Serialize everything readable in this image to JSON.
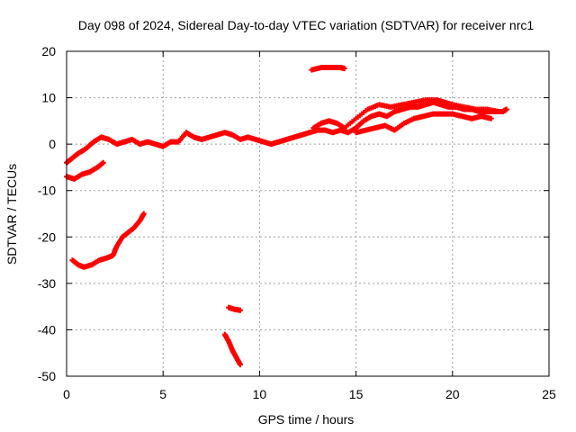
{
  "chart_data": {
    "type": "scatter",
    "title": "Day 098 of 2024, Sidereal Day-to-day VTEC variation (SDTVAR) for receiver nrc1",
    "xlabel": "GPS time / hours",
    "ylabel": "SDTVAR / TECUs",
    "xlim": [
      0,
      25
    ],
    "ylim": [
      -50,
      20
    ],
    "xticks": [
      0,
      5,
      10,
      15,
      20,
      25
    ],
    "yticks": [
      -50,
      -40,
      -30,
      -20,
      -10,
      0,
      10,
      20
    ],
    "xtick_labels": [
      "0",
      "5",
      "10",
      "15",
      "20",
      "25"
    ],
    "ytick_labels": [
      "-50",
      "-40",
      "-30",
      "-20",
      "-10",
      "0",
      "10",
      "20"
    ],
    "grid": true,
    "series_color": "#ff0000",
    "series": [
      {
        "name": "main-band",
        "points": [
          [
            0.0,
            -4.0
          ],
          [
            0.3,
            -3.0
          ],
          [
            0.6,
            -2.0
          ],
          [
            1.0,
            -1.0
          ],
          [
            1.4,
            0.5
          ],
          [
            1.8,
            1.5
          ],
          [
            2.2,
            1.0
          ],
          [
            2.6,
            0.0
          ],
          [
            3.0,
            0.5
          ],
          [
            3.4,
            1.0
          ],
          [
            3.8,
            0.0
          ],
          [
            4.2,
            0.5
          ],
          [
            4.6,
            0.0
          ],
          [
            5.0,
            -0.5
          ],
          [
            5.4,
            0.5
          ],
          [
            5.8,
            0.5
          ],
          [
            6.2,
            2.5
          ],
          [
            6.6,
            1.5
          ],
          [
            7.0,
            1.0
          ],
          [
            7.4,
            1.5
          ],
          [
            7.8,
            2.0
          ],
          [
            8.2,
            2.5
          ],
          [
            8.6,
            2.0
          ],
          [
            9.0,
            1.0
          ],
          [
            9.4,
            1.5
          ],
          [
            9.8,
            1.0
          ],
          [
            10.2,
            0.5
          ],
          [
            10.6,
            0.0
          ],
          [
            11.0,
            0.5
          ],
          [
            11.4,
            1.0
          ],
          [
            11.8,
            1.5
          ],
          [
            12.2,
            2.0
          ],
          [
            12.6,
            2.5
          ],
          [
            13.0,
            3.0
          ],
          [
            13.4,
            3.0
          ],
          [
            13.8,
            2.5
          ],
          [
            14.2,
            3.0
          ],
          [
            14.6,
            2.5
          ],
          [
            15.0,
            3.5
          ],
          [
            15.4,
            5.0
          ],
          [
            15.8,
            6.0
          ],
          [
            16.2,
            6.5
          ],
          [
            16.6,
            6.0
          ],
          [
            17.0,
            7.0
          ],
          [
            17.4,
            7.5
          ],
          [
            17.8,
            8.0
          ],
          [
            18.2,
            8.0
          ],
          [
            18.6,
            8.5
          ],
          [
            19.0,
            9.0
          ],
          [
            19.4,
            8.5
          ],
          [
            19.8,
            8.0
          ],
          [
            20.2,
            8.0
          ],
          [
            20.6,
            7.5
          ],
          [
            21.0,
            7.5
          ],
          [
            21.4,
            7.0
          ],
          [
            21.8,
            7.0
          ],
          [
            22.2,
            7.0
          ],
          [
            22.6,
            7.0
          ],
          [
            22.8,
            7.5
          ]
        ]
      },
      {
        "name": "upper-band",
        "points": [
          [
            12.8,
            3.5
          ],
          [
            13.2,
            4.5
          ],
          [
            13.6,
            5.0
          ],
          [
            14.0,
            4.5
          ],
          [
            14.4,
            3.5
          ],
          [
            15.0,
            5.5
          ],
          [
            15.6,
            7.5
          ],
          [
            16.2,
            8.5
          ],
          [
            16.8,
            8.0
          ],
          [
            17.4,
            8.5
          ],
          [
            18.0,
            9.0
          ],
          [
            18.6,
            9.5
          ],
          [
            19.2,
            9.5
          ],
          [
            19.6,
            9.0
          ],
          [
            20.0,
            8.5
          ],
          [
            20.6,
            8.0
          ],
          [
            21.2,
            7.5
          ],
          [
            21.8,
            7.5
          ],
          [
            22.4,
            7.0
          ]
        ]
      },
      {
        "name": "lower-band",
        "points": [
          [
            15.0,
            2.5
          ],
          [
            15.5,
            3.0
          ],
          [
            16.0,
            3.5
          ],
          [
            16.5,
            4.0
          ],
          [
            17.0,
            3.0
          ],
          [
            17.5,
            4.5
          ],
          [
            18.0,
            5.5
          ],
          [
            18.5,
            6.0
          ],
          [
            19.0,
            6.5
          ],
          [
            19.5,
            6.5
          ],
          [
            20.0,
            6.5
          ],
          [
            20.5,
            6.0
          ],
          [
            21.0,
            5.5
          ],
          [
            21.5,
            6.0
          ],
          [
            22.0,
            5.5
          ]
        ]
      },
      {
        "name": "short-arc-1",
        "points": [
          [
            0.0,
            -7.0
          ],
          [
            0.4,
            -7.5
          ],
          [
            0.8,
            -6.5
          ],
          [
            1.2,
            -6.0
          ],
          [
            1.6,
            -5.0
          ],
          [
            1.9,
            -4.0
          ]
        ]
      },
      {
        "name": "short-arc-2",
        "points": [
          [
            12.7,
            16.0
          ],
          [
            13.2,
            16.5
          ],
          [
            13.7,
            16.5
          ],
          [
            14.2,
            16.5
          ],
          [
            14.4,
            16.3
          ]
        ]
      },
      {
        "name": "short-arc-3",
        "points": [
          [
            0.3,
            -25.0
          ],
          [
            0.6,
            -26.0
          ],
          [
            0.9,
            -26.5
          ],
          [
            1.3,
            -26.0
          ],
          [
            1.7,
            -25.0
          ],
          [
            2.1,
            -24.5
          ],
          [
            2.4,
            -24.0
          ],
          [
            2.6,
            -22.0
          ],
          [
            2.9,
            -20.0
          ],
          [
            3.2,
            -19.0
          ],
          [
            3.5,
            -18.0
          ],
          [
            3.8,
            -16.5
          ],
          [
            4.0,
            -15.0
          ]
        ]
      },
      {
        "name": "short-arc-4",
        "points": [
          [
            8.4,
            -35.2
          ],
          [
            8.7,
            -35.6
          ],
          [
            9.0,
            -35.8
          ]
        ]
      },
      {
        "name": "short-arc-5",
        "points": [
          [
            8.2,
            -41.0
          ],
          [
            8.4,
            -42.5
          ],
          [
            8.6,
            -44.5
          ],
          [
            8.8,
            -46.0
          ],
          [
            9.0,
            -47.5
          ]
        ]
      }
    ]
  }
}
